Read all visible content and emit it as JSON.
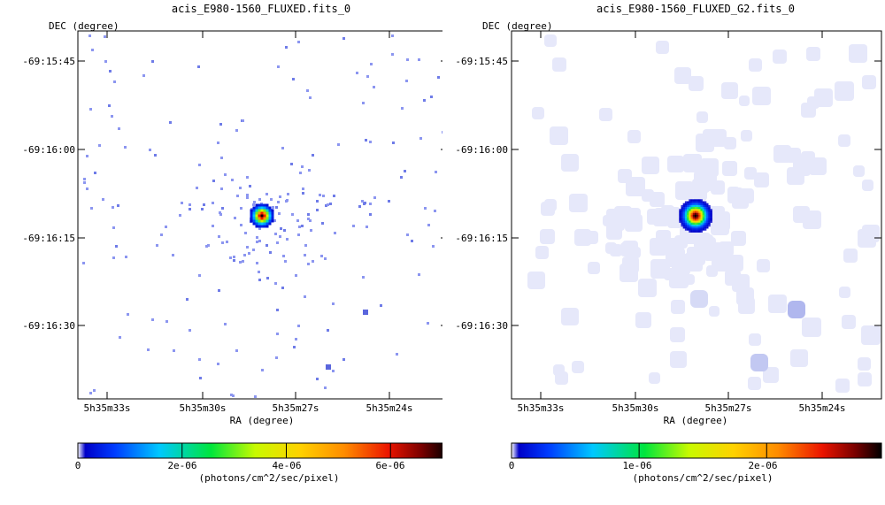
{
  "chart_data": [
    {
      "type": "heatmap",
      "title": "acis_E980-1560_FLUXED.fits_0",
      "ylabel": "DEC (degree)",
      "xlabel": "RA (degree)",
      "yticks": [
        "-69:15:45",
        "-69:16:00",
        "-69:16:15",
        "-69:16:30"
      ],
      "xticks": [
        "5h35m33s",
        "5h35m30s",
        "5h35m27s",
        "5h35m24s"
      ],
      "colorbar": {
        "ticks": [
          "0",
          "2e-06",
          "4e-06",
          "6e-06"
        ],
        "tick_values": [
          0,
          2e-06,
          4e-06,
          6e-06
        ],
        "max": 7.1e-06,
        "unit": "(photons/cm^2/sec/pixel)"
      },
      "source": {
        "ra": "5h35m27.4s",
        "dec": "-69:16:11",
        "peak": 7e-06
      },
      "smoothing": "none"
    },
    {
      "type": "heatmap",
      "title": "acis_E980-1560_FLUXED_G2.fits_0",
      "ylabel": "DEC (degree)",
      "xlabel": "RA (degree)",
      "yticks": [
        "-69:15:45",
        "-69:16:00",
        "-69:16:15",
        "-69:16:30"
      ],
      "xticks": [
        "5h35m33s",
        "5h35m30s",
        "5h35m27s",
        "5h35m24s"
      ],
      "colorbar": {
        "ticks": [
          "0",
          "1e-06",
          "2e-06"
        ],
        "tick_values": [
          0,
          1e-06,
          2e-06
        ],
        "max": 2.9e-06,
        "unit": "(photons/cm^2/sec/pixel)"
      },
      "source": {
        "ra": "5h35m27.4s",
        "dec": "-69:16:11",
        "peak": 2.9e-06
      },
      "smoothing": "gaussian"
    }
  ]
}
